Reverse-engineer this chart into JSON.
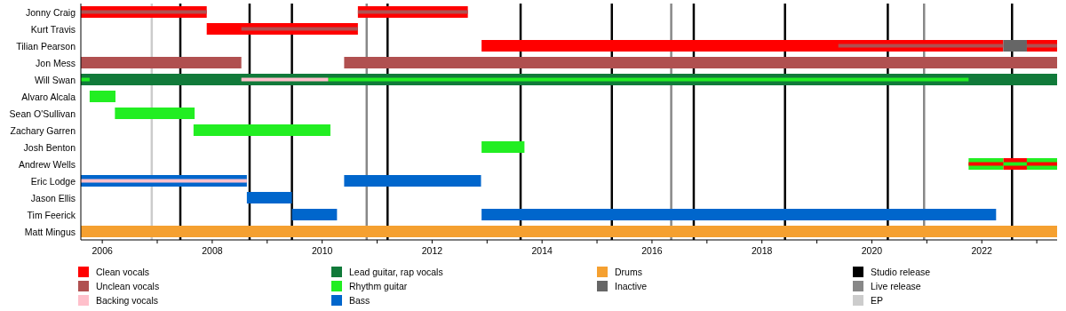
{
  "chart_data": {
    "type": "bar",
    "orientation": "horizontal",
    "legend": "bottom",
    "categories": [
      "Jonny Craig",
      "Kurt Travis",
      "Tilian Pearson",
      "Jon Mess",
      "Will Swan",
      "Alvaro Alcala",
      "Sean O'Sullivan",
      "Zachary Garren",
      "Josh Benton",
      "Andrew Wells",
      "Eric Lodge",
      "Jason Ellis",
      "Tim Feerick",
      "Matt Mingus"
    ],
    "xlim": [
      2005.61,
      2023.37
    ],
    "xticks": [
      2006,
      {
        "value": 2007,
        "label": null
      },
      2008,
      {
        "value": 2009,
        "label": null
      },
      2010,
      {
        "value": 2011,
        "label": null
      },
      2012,
      {
        "value": 2013,
        "label": null
      },
      2014,
      {
        "value": 2015,
        "label": null
      },
      2016,
      {
        "value": 2017,
        "label": null
      },
      2018,
      {
        "value": 2019,
        "label": null
      },
      2020,
      {
        "value": 2021,
        "label": null
      },
      2022,
      {
        "value": 2023,
        "label": null
      }
    ],
    "series": [
      {
        "name": "Clean vocals",
        "color": "#ff0000",
        "base": [
          2005.61,
          2007.9,
          2012.9,
          null,
          null,
          null,
          null,
          null,
          null,
          2022.39,
          null,
          null,
          null,
          null
        ],
        "values": [
          2.29,
          2.75,
          9.49,
          null,
          null,
          null,
          null,
          null,
          null,
          0.43,
          null,
          null,
          null,
          null
        ]
      },
      {
        "name": "Unclean vocals",
        "color": "#b05050",
        "base": [
          null,
          null,
          null,
          2005.61,
          null,
          null,
          null,
          null,
          null,
          null,
          null,
          null,
          null,
          null
        ],
        "values": [
          null,
          null,
          null,
          2.92,
          null,
          null,
          null,
          null,
          null,
          null,
          null,
          null,
          null,
          null
        ]
      },
      {
        "name": "Backing vocals",
        "color": "#ffc0cb",
        "base": [
          null,
          null,
          null,
          null,
          null,
          null,
          null,
          null,
          null,
          null,
          null,
          null,
          null,
          null
        ],
        "values": [
          null,
          null,
          null,
          null,
          null,
          null,
          null,
          null,
          null,
          null,
          null,
          null,
          null,
          null
        ]
      },
      {
        "name": "Lead guitar, rap vocals",
        "color": "#117a3a",
        "base": [
          null,
          null,
          null,
          null,
          2005.61,
          null,
          null,
          null,
          null,
          null,
          null,
          null,
          null,
          null
        ],
        "values": [
          null,
          null,
          null,
          null,
          17.76,
          null,
          null,
          null,
          null,
          null,
          null,
          null,
          null,
          null
        ]
      },
      {
        "name": "Rhythm guitar",
        "color": "#22ee22",
        "base": [
          null,
          null,
          null,
          null,
          null,
          2005.77,
          2006.23,
          2007.66,
          2012.9,
          2021.76,
          null,
          null,
          null,
          null
        ],
        "values": [
          null,
          null,
          null,
          null,
          null,
          0.47,
          1.45,
          2.49,
          0.78,
          0.63,
          null,
          null,
          null,
          null
        ]
      },
      {
        "name": "Bass",
        "color": "#0066cc",
        "base": [
          null,
          null,
          null,
          null,
          null,
          null,
          null,
          null,
          null,
          null,
          2005.61,
          2008.63,
          2009.45,
          null
        ],
        "values": [
          null,
          null,
          null,
          null,
          null,
          null,
          null,
          null,
          null,
          null,
          3.02,
          0.82,
          0.82,
          null
        ]
      },
      {
        "name": "Drums",
        "color": "#f5a030",
        "base": [
          null,
          null,
          null,
          null,
          null,
          null,
          null,
          null,
          null,
          null,
          null,
          null,
          null,
          2005.61
        ],
        "values": [
          null,
          null,
          null,
          null,
          null,
          null,
          null,
          null,
          null,
          null,
          null,
          null,
          null,
          17.76
        ]
      },
      {
        "name": "Inactive",
        "color": "#666666",
        "base": [
          null,
          null,
          2022.39,
          null,
          null,
          null,
          null,
          null,
          null,
          null,
          null,
          null,
          null,
          null
        ],
        "values": [
          null,
          null,
          0.43,
          null,
          null,
          null,
          null,
          null,
          null,
          null,
          null,
          null,
          null,
          null
        ]
      },
      {
        "color": "#ff0000",
        "base": [
          2010.65,
          null,
          2022.82,
          null,
          null,
          null,
          null,
          null,
          null,
          null,
          null,
          null,
          null,
          null
        ],
        "values": [
          2.0,
          null,
          0.55,
          null,
          null,
          null,
          null,
          null,
          null,
          null,
          null,
          null,
          null,
          null
        ]
      },
      {
        "color": "#b05050",
        "base": [
          null,
          null,
          null,
          2010.4,
          null,
          null,
          null,
          null,
          null,
          null,
          null,
          null,
          null,
          null
        ],
        "values": [
          null,
          null,
          null,
          12.97,
          null,
          null,
          null,
          null,
          null,
          null,
          null,
          null,
          null,
          null
        ]
      },
      {
        "color": "#0066cc",
        "base": [
          null,
          null,
          null,
          null,
          null,
          null,
          null,
          null,
          null,
          null,
          2010.4,
          null,
          2012.9,
          null
        ],
        "values": [
          null,
          null,
          null,
          null,
          null,
          null,
          null,
          null,
          null,
          null,
          2.49,
          null,
          9.36,
          null
        ]
      },
      {
        "color": "#22ee22",
        "base": [
          null,
          null,
          null,
          null,
          null,
          null,
          null,
          null,
          null,
          2022.82,
          null,
          null,
          null,
          null
        ],
        "values": [
          null,
          null,
          null,
          null,
          null,
          null,
          null,
          null,
          null,
          0.55,
          null,
          null,
          null,
          null
        ]
      },
      {
        "color": "#b05050",
        "base": [
          2005.61,
          2008.53,
          2019.39,
          null,
          null,
          null,
          null,
          null,
          null,
          null,
          null,
          null,
          null,
          null
        ],
        "values": [
          2.29,
          2.12,
          3.0,
          null,
          null,
          null,
          null,
          null,
          null,
          null,
          null,
          null,
          null,
          null
        ]
      },
      {
        "color": "#b05050",
        "base": [
          2010.65,
          null,
          2022.82,
          null,
          null,
          null,
          null,
          null,
          null,
          null,
          null,
          null,
          null,
          null
        ],
        "values": [
          2.0,
          null,
          0.55,
          null,
          null,
          null,
          null,
          null,
          null,
          null,
          null,
          null,
          null,
          null
        ]
      },
      {
        "color": "#22ee22",
        "base": [
          null,
          null,
          null,
          null,
          2005.61,
          null,
          null,
          null,
          null,
          2022.39,
          null,
          null,
          null,
          null
        ],
        "values": [
          null,
          null,
          null,
          null,
          0.16,
          null,
          null,
          null,
          null,
          0.43,
          null,
          null,
          null,
          null
        ]
      },
      {
        "color": "#22ee22",
        "base": [
          null,
          null,
          null,
          null,
          2010.11,
          null,
          null,
          null,
          null,
          null,
          null,
          null,
          null,
          null
        ],
        "values": [
          null,
          null,
          null,
          null,
          11.65,
          null,
          null,
          null,
          null,
          null,
          null,
          null,
          null,
          null
        ]
      },
      {
        "color": "#ffc0cb",
        "base": [
          null,
          null,
          null,
          null,
          2008.53,
          null,
          null,
          null,
          null,
          null,
          2005.61,
          null,
          null,
          null
        ],
        "values": [
          null,
          null,
          null,
          null,
          1.58,
          null,
          null,
          null,
          null,
          null,
          3.02,
          null,
          null,
          null
        ]
      },
      {
        "color": "#ff0000",
        "base": [
          null,
          null,
          null,
          null,
          null,
          null,
          null,
          null,
          null,
          2021.76,
          null,
          null,
          null,
          null
        ],
        "values": [
          null,
          null,
          null,
          null,
          null,
          null,
          null,
          null,
          null,
          0.63,
          null,
          null,
          null,
          null
        ]
      },
      {
        "color": "#ff0000",
        "base": [
          null,
          null,
          null,
          null,
          null,
          null,
          null,
          null,
          null,
          2022.82,
          null,
          null,
          null,
          null
        ],
        "values": [
          null,
          null,
          null,
          null,
          null,
          null,
          null,
          null,
          null,
          0.55,
          null,
          null,
          null,
          null
        ]
      }
    ],
    "ref_lines": [
      {
        "axis": "x",
        "value": 2007.42,
        "label": "Studio release",
        "color": "#000000"
      },
      {
        "axis": "x",
        "value": 2008.68,
        "color": "#000000"
      },
      {
        "axis": "x",
        "value": 2009.45,
        "color": "#000000"
      },
      {
        "axis": "x",
        "value": 2011.19,
        "color": "#000000"
      },
      {
        "axis": "x",
        "value": 2013.61,
        "color": "#000000"
      },
      {
        "axis": "x",
        "value": 2015.27,
        "color": "#000000"
      },
      {
        "axis": "x",
        "value": 2016.76,
        "color": "#000000"
      },
      {
        "axis": "x",
        "value": 2018.42,
        "color": "#000000"
      },
      {
        "axis": "x",
        "value": 2020.29,
        "color": "#000000"
      },
      {
        "axis": "x",
        "value": 2022.55,
        "color": "#000000"
      },
      {
        "axis": "x",
        "value": 2010.81,
        "label": "Live release",
        "color": "#888888"
      },
      {
        "axis": "x",
        "value": 2016.35,
        "color": "#888888"
      },
      {
        "axis": "x",
        "value": 2020.95,
        "color": "#888888"
      },
      {
        "axis": "x",
        "value": 2006.9,
        "label": "EP",
        "color": "#cccccc"
      }
    ]
  }
}
